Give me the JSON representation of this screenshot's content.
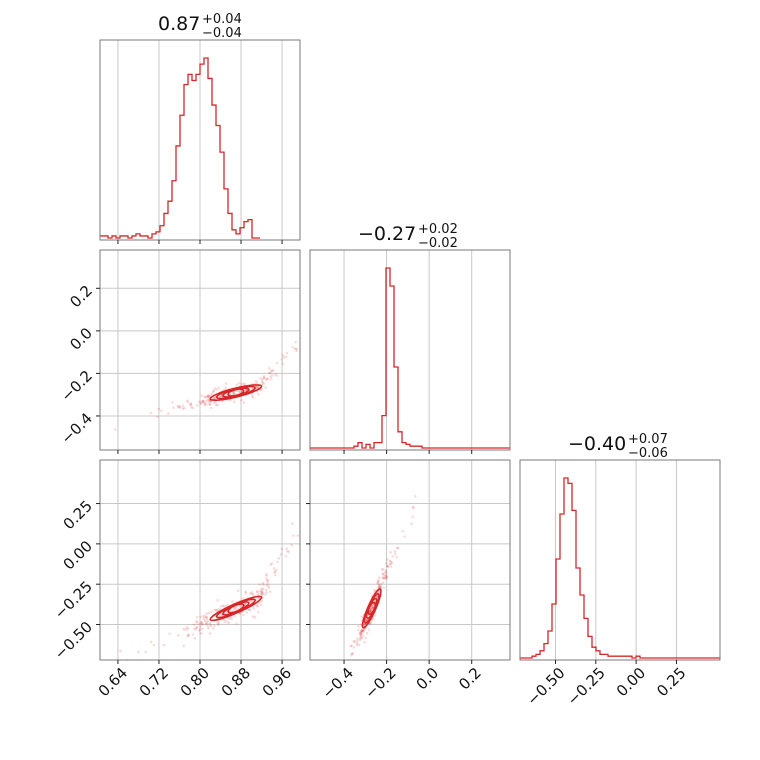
{
  "chart_data": {
    "type": "corner",
    "color": "#d62728",
    "titles": [
      {
        "value": "0.87",
        "plus": "+0.04",
        "minus": "−0.04"
      },
      {
        "value": "−0.27",
        "plus": "+0.02",
        "minus": "−0.02"
      },
      {
        "value": "−0.40",
        "plus": "+0.07",
        "minus": "−0.06"
      }
    ],
    "axes": [
      {
        "range": [
          0.605,
          0.995
        ],
        "ticks": [
          0.64,
          0.72,
          0.8,
          0.88,
          0.96
        ],
        "tick_labels": [
          "0.64",
          "0.72",
          "0.80",
          "0.88",
          "0.96"
        ]
      },
      {
        "range": [
          -0.56,
          0.38
        ],
        "ticks": [
          -0.4,
          -0.2,
          0.0,
          0.2
        ],
        "tick_labels": [
          "−0.4",
          "−0.2",
          "0.0",
          "0.2"
        ]
      },
      {
        "range": [
          -0.72,
          0.52
        ],
        "ticks": [
          -0.5,
          -0.25,
          0.0,
          0.25
        ],
        "tick_labels": [
          "−0.50",
          "−0.25",
          "0.00",
          "0.25"
        ]
      }
    ],
    "histograms": [
      {
        "edges_start": 0.605,
        "bin_width": 0.0078,
        "counts": [
          1,
          1,
          0,
          1,
          0,
          1,
          1,
          0,
          1,
          2,
          1,
          1,
          0,
          2,
          3,
          6,
          12,
          18,
          28,
          45,
          60,
          75,
          80,
          77,
          80,
          85,
          88,
          78,
          65,
          55,
          42,
          24,
          12,
          4,
          2,
          5,
          8,
          9,
          0,
          0
        ]
      },
      {
        "edges_start": -0.56,
        "bin_width": 0.0188,
        "counts": [
          0,
          0,
          0,
          0,
          0,
          0,
          0,
          0,
          0,
          0,
          0,
          1,
          3,
          0,
          2,
          0,
          3,
          3,
          18,
          100,
          90,
          45,
          9,
          3,
          2,
          1,
          1,
          1,
          0,
          0,
          0,
          0,
          0,
          0,
          0,
          0,
          0,
          0,
          0,
          0,
          0,
          0,
          0,
          0,
          0,
          0,
          0,
          0,
          0,
          0
        ]
      },
      {
        "edges_start": -0.72,
        "bin_width": 0.0248,
        "counts": [
          0,
          0,
          0,
          1,
          2,
          4,
          8,
          15,
          30,
          55,
          80,
          100,
          97,
          82,
          50,
          35,
          22,
          12,
          6,
          4,
          2,
          2,
          1,
          1,
          1,
          1,
          1,
          1,
          0,
          1,
          0,
          0,
          0,
          0,
          0,
          0,
          0,
          0,
          0,
          0,
          0,
          0,
          0,
          0,
          0,
          0,
          0,
          0,
          0,
          0
        ]
      }
    ]
  }
}
